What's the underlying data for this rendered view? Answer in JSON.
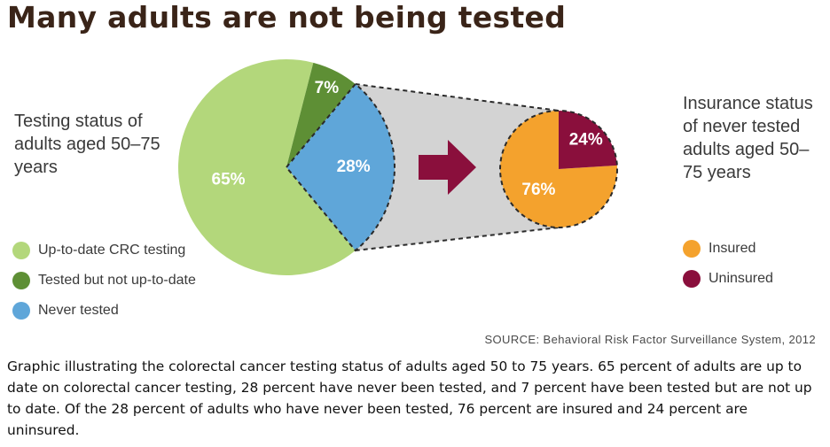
{
  "title": "Many adults are not being tested",
  "left_label": "Testing status of adults aged 50–75 years",
  "right_label": "Insurance status of never tested adults aged 50–75 years",
  "source": "SOURCE: Behavioral Risk Factor Surveillance System, 2012",
  "caption": "Graphic illustrating the colorectal cancer testing status of adults aged 50 to 75 years. 65 percent of adults are up to date on colorectal cancer testing, 28 percent have never been tested, and 7 percent have been tested but are not up to date. Of the 28 percent of adults who have never been tested, 76 percent are insured and 24 percent are uninsured.",
  "colors": {
    "up_to_date": "#b3d77b",
    "tested_not_up_to_date": "#5e8f35",
    "never_tested": "#5fa6d9",
    "insured": "#f4a22d",
    "uninsured": "#8a0f3c",
    "arrow": "#8a0f3c",
    "connector_fill": "#d3d3d3"
  },
  "chart_data": [
    {
      "type": "pie",
      "title": "",
      "categories": [
        "Up-to-date CRC testing",
        "Tested but not up-to-date",
        "Never tested"
      ],
      "values": [
        65,
        7,
        28
      ],
      "labels": [
        "65%",
        "7%",
        "28%"
      ],
      "legend": "bottom-left"
    },
    {
      "type": "pie",
      "title": "",
      "categories": [
        "Insured",
        "Uninsured"
      ],
      "values": [
        76,
        24
      ],
      "labels": [
        "76%",
        "24%"
      ],
      "legend": "right"
    }
  ]
}
